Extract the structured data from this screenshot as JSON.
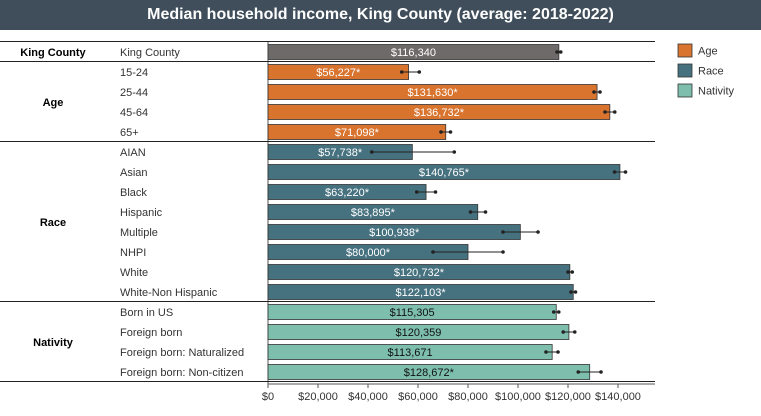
{
  "title": "Median household income, King County (average: 2018-2022)",
  "chart_data": {
    "type": "bar",
    "orientation": "horizontal",
    "title": "Median household income, King County (average: 2018-2022)",
    "xlim": [
      0,
      150000
    ],
    "x_ticks": [
      "$0",
      "$20,000",
      "$40,000",
      "$60,000",
      "$80,000",
      "$100,000",
      "$120,000",
      "$140,000"
    ],
    "x_tick_values": [
      0,
      20000,
      40000,
      60000,
      80000,
      100000,
      120000,
      140000
    ],
    "legend": {
      "placement": "top-right",
      "entries": [
        {
          "name": "Age",
          "color": "#d9742f"
        },
        {
          "name": "Race",
          "color": "#46717f"
        },
        {
          "name": "Nativity",
          "color": "#7dbfac"
        }
      ]
    },
    "colors": {
      "King County": "#6f6a6a",
      "Age": "#d9742f",
      "Race": "#46717f",
      "Nativity": "#7dbfac"
    },
    "groups": [
      {
        "name": "King County",
        "rows": [
          {
            "category": "King County",
            "value": 116340,
            "label": "$116,340",
            "ci": [
              115600,
              117100
            ]
          }
        ]
      },
      {
        "name": "Age",
        "rows": [
          {
            "category": "15-24",
            "value": 56227,
            "label": "$56,227*",
            "ci": [
              53500,
              60500
            ]
          },
          {
            "category": "25-44",
            "value": 131630,
            "label": "$131,630*",
            "ci": [
              130400,
              132800
            ]
          },
          {
            "category": "45-64",
            "value": 136732,
            "label": "$136,732*",
            "ci": [
              134800,
              138700
            ]
          },
          {
            "category": "65+",
            "value": 71098,
            "label": "$71,098*",
            "ci": [
              69200,
              73000
            ]
          }
        ]
      },
      {
        "name": "Race",
        "rows": [
          {
            "category": "AIAN",
            "value": 57738,
            "label": "$57,738*",
            "ci": [
              41500,
              74500
            ]
          },
          {
            "category": "Asian",
            "value": 140765,
            "label": "$140,765*",
            "ci": [
              138600,
              143000
            ]
          },
          {
            "category": "Black",
            "value": 63220,
            "label": "$63,220*",
            "ci": [
              59500,
              67000
            ]
          },
          {
            "category": "Hispanic",
            "value": 83895,
            "label": "$83,895*",
            "ci": [
              81000,
              87000
            ]
          },
          {
            "category": "Multiple",
            "value": 100938,
            "label": "$100,938*",
            "ci": [
              94000,
              108000
            ]
          },
          {
            "category": "NHPI",
            "value": 80000,
            "label": "$80,000*",
            "ci": [
              66000,
              94000
            ]
          },
          {
            "category": "White",
            "value": 120732,
            "label": "$120,732*",
            "ci": [
              120000,
              121700
            ]
          },
          {
            "category": "White-Non Hispanic",
            "value": 122103,
            "label": "$122,103*",
            "ci": [
              121200,
              123000
            ]
          }
        ]
      },
      {
        "name": "Nativity",
        "rows": [
          {
            "category": "Born in US",
            "value": 115305,
            "label": "$115,305",
            "ci": [
              114300,
              116300
            ]
          },
          {
            "category": "Foreign born",
            "value": 120359,
            "label": "$120,359",
            "ci": [
              118100,
              122700
            ]
          },
          {
            "category": "Foreign born: Naturalized",
            "value": 113671,
            "label": "$113,671",
            "ci": [
              111200,
              116000
            ]
          },
          {
            "category": "Foreign born: Non-citizen",
            "value": 128672,
            "label": "$128,672*",
            "ci": [
              124100,
              133200
            ]
          }
        ]
      }
    ]
  }
}
